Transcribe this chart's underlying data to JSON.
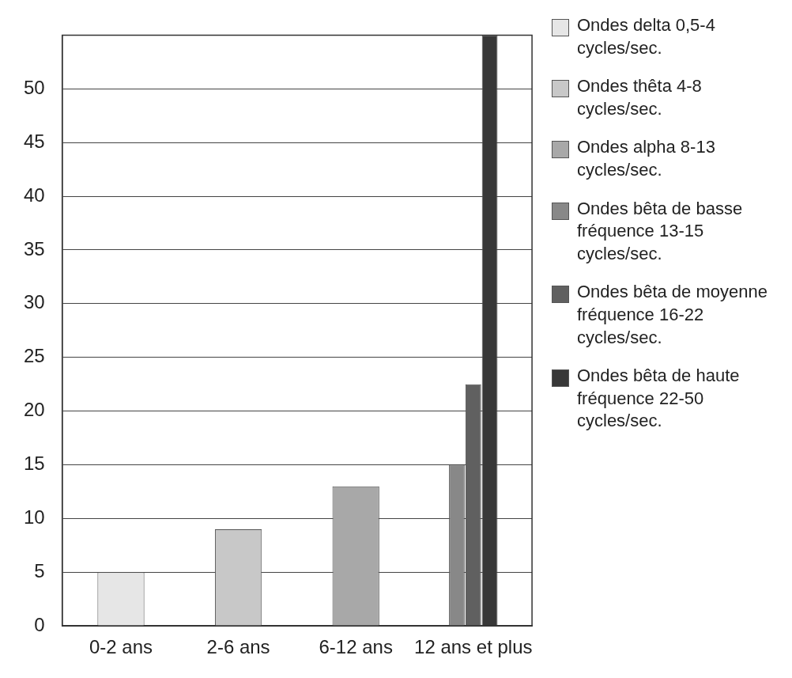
{
  "chart_data": {
    "type": "bar",
    "categories": [
      "0-2 ans",
      "2-6 ans",
      "6-12 ans",
      "12 ans et plus"
    ],
    "series": [
      {
        "name": "Ondes delta 0,5-4 cycles/sec.",
        "color": "#e6e6e6",
        "values": [
          5,
          null,
          null,
          null
        ]
      },
      {
        "name": "Ondes thêta 4-8 cycles/sec.",
        "color": "#c8c8c8",
        "values": [
          null,
          9,
          null,
          null
        ]
      },
      {
        "name": "Ondes alpha 8-13 cycles/sec.",
        "color": "#a8a8a8",
        "values": [
          null,
          null,
          13,
          null
        ]
      },
      {
        "name": "Ondes bêta de basse fréquence 13-15 cycles/sec.",
        "color": "#888888",
        "values": [
          null,
          null,
          null,
          15
        ]
      },
      {
        "name": "Ondes bêta de moyenne fréquence 16-22 cycles/sec.",
        "color": "#606060",
        "values": [
          null,
          null,
          null,
          22.5
        ]
      },
      {
        "name": "Ondes bêta de haute fréquence 22-50 cycles/sec.",
        "color": "#383838",
        "values": [
          null,
          null,
          null,
          55
        ]
      }
    ],
    "ylim": [
      0,
      55
    ],
    "yticks": [
      0,
      5,
      10,
      15,
      20,
      25,
      30,
      35,
      40,
      45,
      50
    ],
    "grid": "y",
    "legend": "right"
  }
}
